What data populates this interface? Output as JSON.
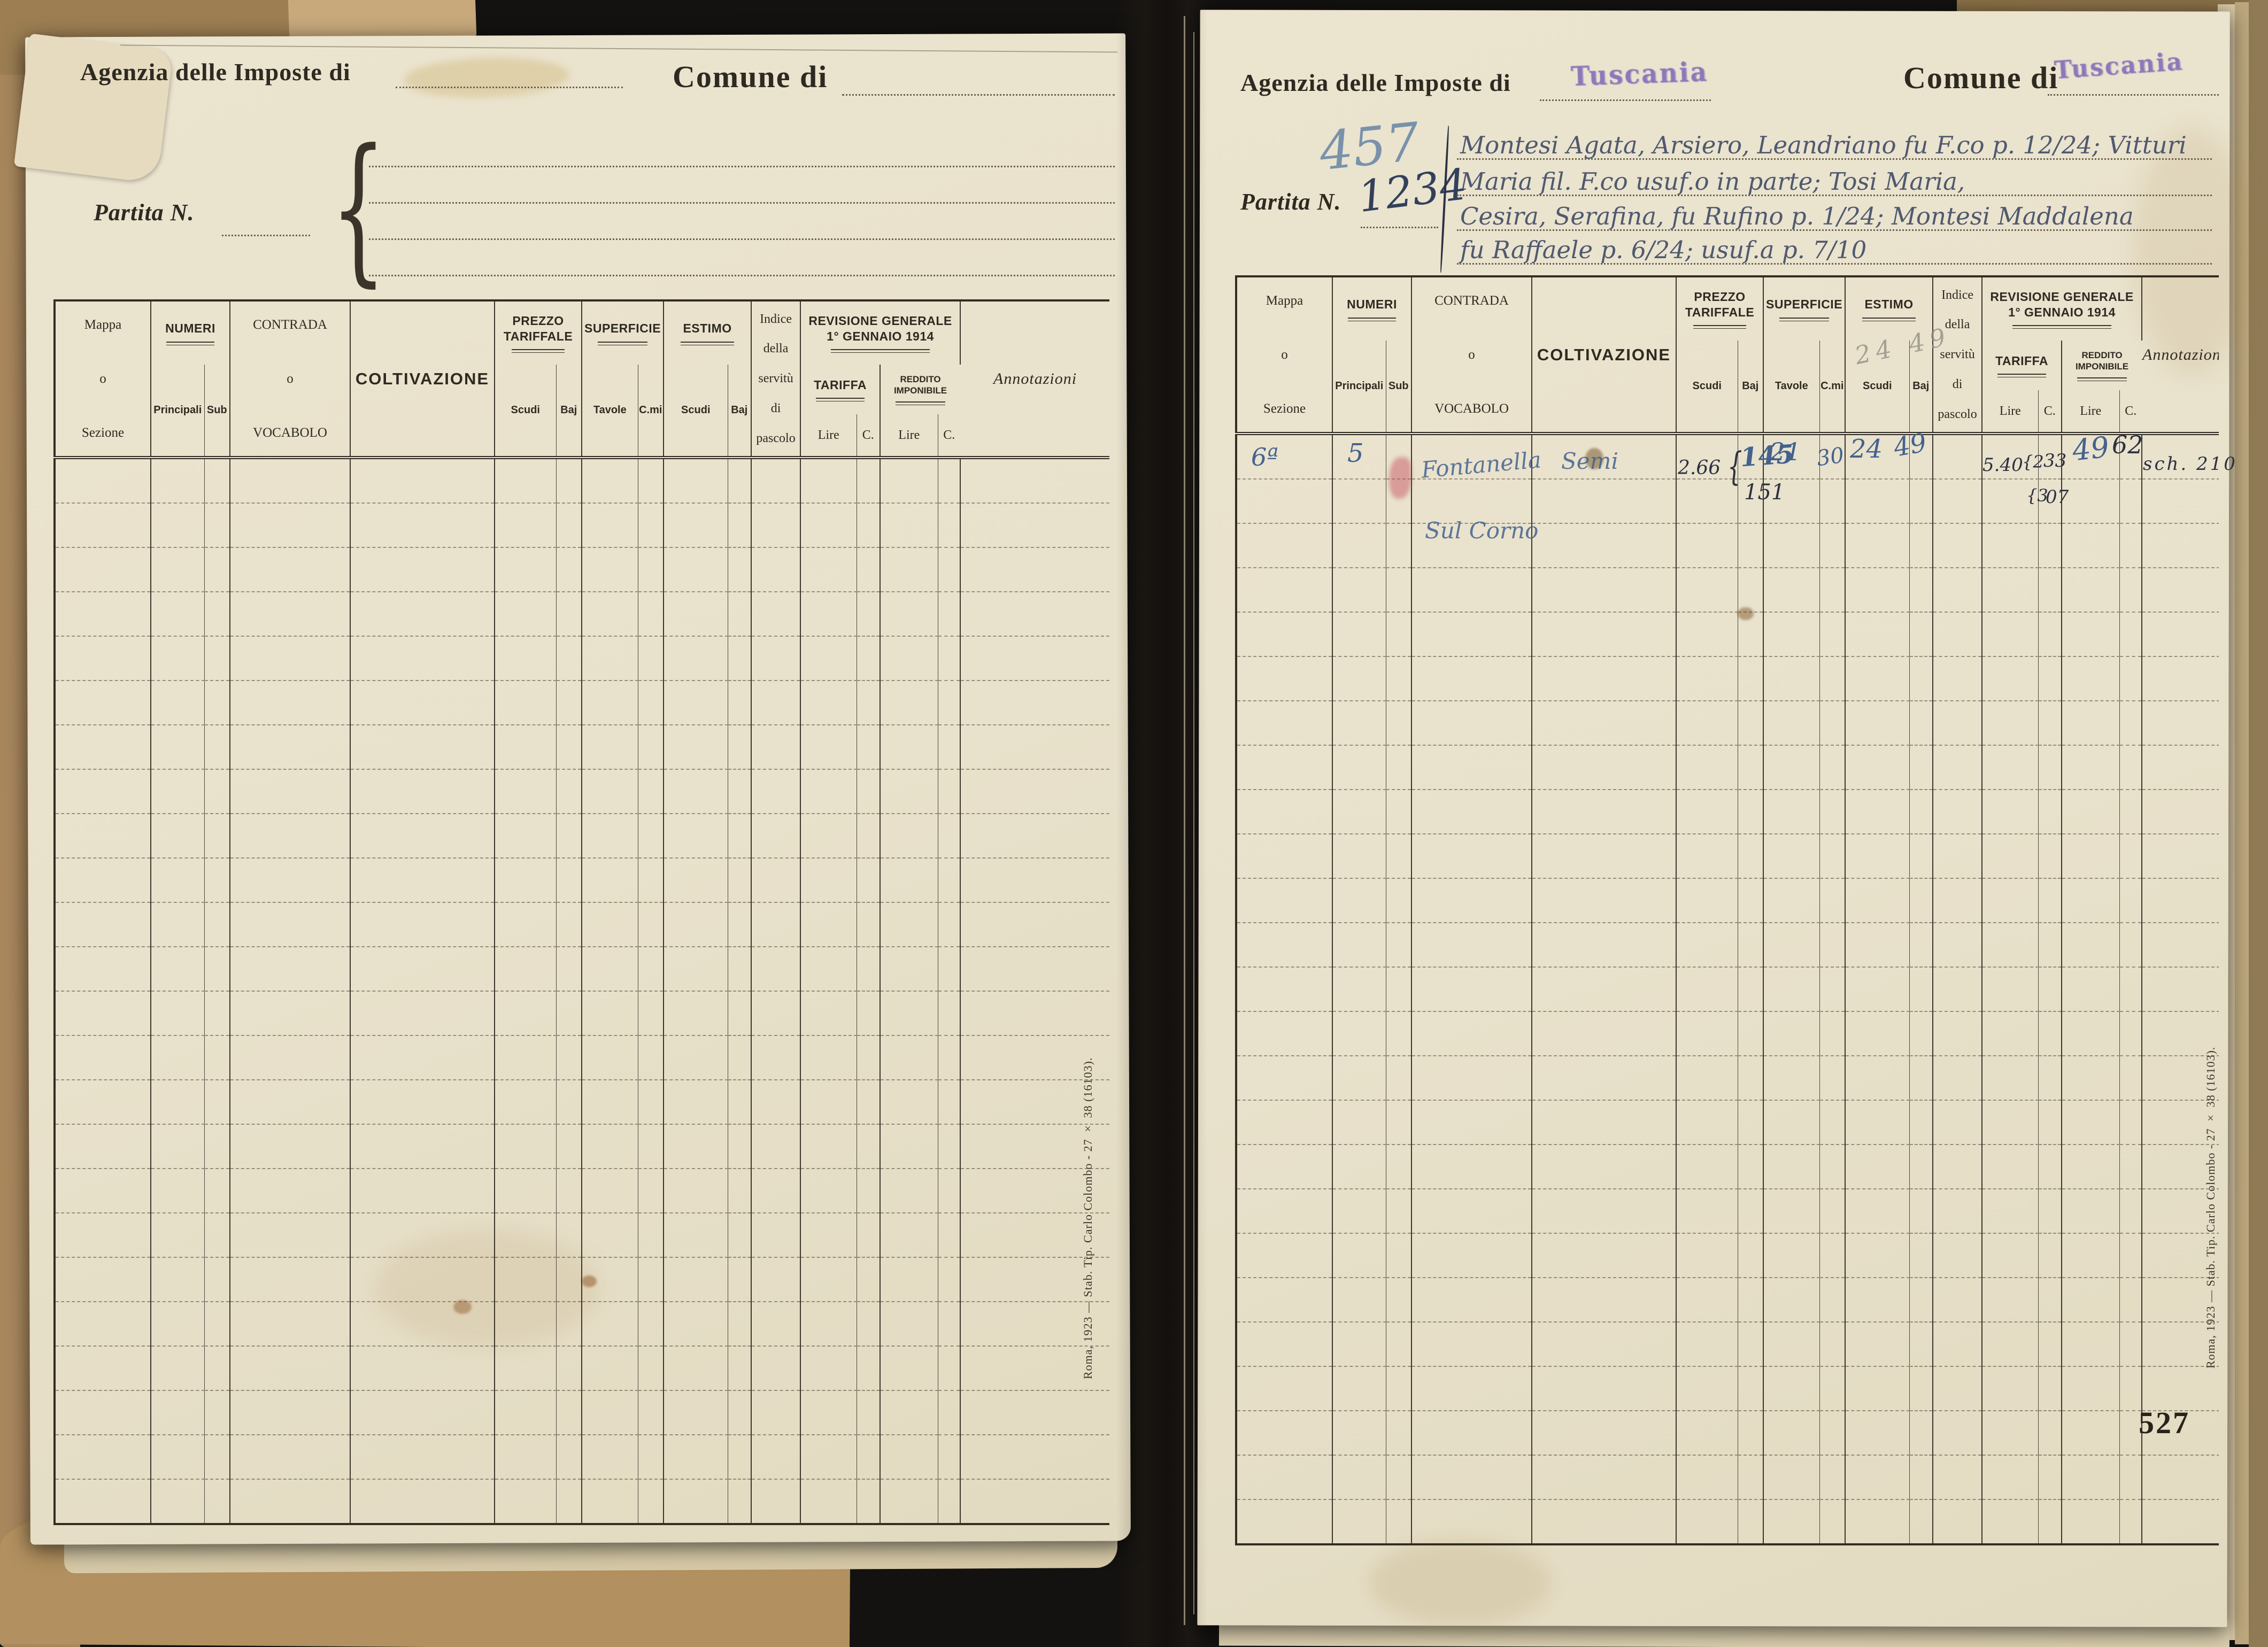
{
  "document": {
    "page_number": "527",
    "imprint": "Roma, 1923 — Stab. Tip. Carlo Colombo - 27 × 38 (16103)."
  },
  "left_page": {
    "agenzia_label": "Agenzia delle Imposte di",
    "comune_label": "Comune di",
    "partita_label": "Partita N."
  },
  "right_page": {
    "agenzia_label": "Agenzia delle Imposte di",
    "comune_label": "Comune di",
    "partita_label": "Partita N.",
    "agenzia_stamp": "Tuscania",
    "comune_stamp": "Tuscania",
    "partita_number": "1234",
    "registry_pencil_number": "457",
    "estimo_pencil_note": "24 49",
    "owner_lines": [
      "Montesi Agata, Arsiero, Leandriano fu F.co p. 12/24; Vitturi",
      "Maria fil. F.co usuf.o in parte; Tosi Maria,",
      "Cesira, Serafina, fu Rufino p. 1/24; Montesi Maddalena",
      "fu Raffaele p. 6/24; usuf.a p. 7/10"
    ]
  },
  "table_header": {
    "mappa": "Mappa",
    "o1": "o",
    "sezione": "Sezione",
    "numeri": "NUMERI",
    "principali": "Principali",
    "sub": "Sub",
    "contrada": "CONTRADA",
    "o2": "o",
    "vocabolo": "VOCABOLO",
    "coltivazione": "COLTIVAZIONE",
    "prezzo_tariffale": "PREZZO TARIFFALE",
    "superficie": "SUPERFICIE",
    "estimo": "ESTIMO",
    "scudi": "Scudi",
    "baj": "Baj",
    "tavole": "Tavole",
    "cmi": "C.mi",
    "indice_l1": "Indice",
    "indice_l2": "della",
    "indice_l3": "servitù",
    "indice_l4": "di",
    "indice_l5": "pascolo",
    "revisione_l1": "REVISIONE GENERALE",
    "revisione_l2": "1° GENNAIO 1914",
    "tariffa": "TARIFFA",
    "reddito": "REDDITO IMPONIBILE",
    "lire": "Lire",
    "c": "C.",
    "annotazioni": "Annotazioni"
  },
  "entry": {
    "mappa": "6ª",
    "principale": "5",
    "contrada_1": "Fontanella",
    "contrada_2": "Sul Corno",
    "coltivazione": "Semi",
    "prezzo_scudi": "2.66",
    "prezzo_brace": "{",
    "prezzo_alt_top": "145",
    "prezzo_alt_bottom": "151",
    "tavole": "21",
    "cmi": "30",
    "estimo_scudi": "24",
    "estimo_baj": "49",
    "tariffa_lire": "5.40",
    "tariffa_top_lire": "{2",
    "tariffa_top_c": "33",
    "tariffa_bottom_lire": "{3",
    "tariffa_bottom_c": "07",
    "reddito_lire": "49",
    "reddito_c": "62",
    "annotazione": "sch. 210"
  },
  "layout_counts": {
    "left_rows": 24,
    "right_rows": 25
  }
}
